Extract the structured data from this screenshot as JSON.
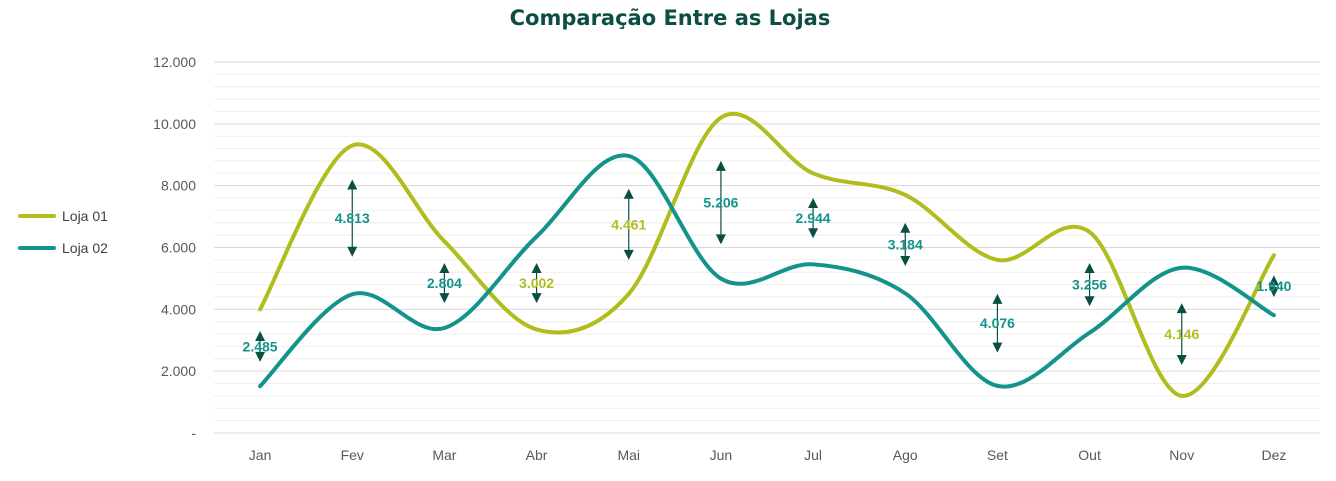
{
  "chart_data": {
    "type": "line",
    "title": "Comparação Entre as Lojas",
    "xlabel": "",
    "ylabel": "",
    "categories": [
      "Jan",
      "Fev",
      "Mar",
      "Abr",
      "Mai",
      "Jun",
      "Jul",
      "Ago",
      "Set",
      "Out",
      "Nov",
      "Dez"
    ],
    "series": [
      {
        "name": "Loja 01",
        "color": "#b0bd1c",
        "values": [
          4000,
          9300,
          6200,
          3350,
          4500,
          10200,
          8400,
          7700,
          5600,
          6500,
          1200,
          5750
        ]
      },
      {
        "name": "Loja 02",
        "color": "#14938a",
        "values": [
          1515,
          4487,
          3396,
          6352,
          8961,
          4994,
          5456,
          4516,
          1524,
          3244,
          5346,
          3810
        ]
      }
    ],
    "differences": [
      {
        "label": "2.485",
        "color": "#14938a",
        "low": 2300,
        "high": 3300
      },
      {
        "label": "4.813",
        "color": "#14938a",
        "low": 5700,
        "high": 8200
      },
      {
        "label": "2.804",
        "color": "#14938a",
        "low": 4200,
        "high": 5500
      },
      {
        "label": "3.002",
        "color": "#b0bd1c",
        "low": 4200,
        "high": 5500
      },
      {
        "label": "4.461",
        "color": "#b0bd1c",
        "low": 5600,
        "high": 7900
      },
      {
        "label": "5.206",
        "color": "#14938a",
        "low": 6100,
        "high": 8800
      },
      {
        "label": "2.944",
        "color": "#14938a",
        "low": 6300,
        "high": 7600
      },
      {
        "label": "3.184",
        "color": "#14938a",
        "low": 5400,
        "high": 6800
      },
      {
        "label": "4.076",
        "color": "#14938a",
        "low": 2600,
        "high": 4500
      },
      {
        "label": "3.256",
        "color": "#14938a",
        "low": 4100,
        "high": 5500
      },
      {
        "label": "4.146",
        "color": "#b0bd1c",
        "low": 2200,
        "high": 4200
      },
      {
        "label": "1.940",
        "color": "#14938a",
        "low": 4400,
        "high": 5100
      }
    ],
    "ylim": [
      0,
      12000
    ],
    "y_ticks": [
      {
        "value": 0,
        "label": "-"
      },
      {
        "value": 2000,
        "label": "2.000"
      },
      {
        "value": 4000,
        "label": "4.000"
      },
      {
        "value": 6000,
        "label": "6.000"
      },
      {
        "value": 8000,
        "label": "8.000"
      },
      {
        "value": 10000,
        "label": "10.000"
      },
      {
        "value": 12000,
        "label": "12.000"
      }
    ],
    "grid": true,
    "legend_position": "left",
    "arrow_color": "#0b4f44"
  }
}
